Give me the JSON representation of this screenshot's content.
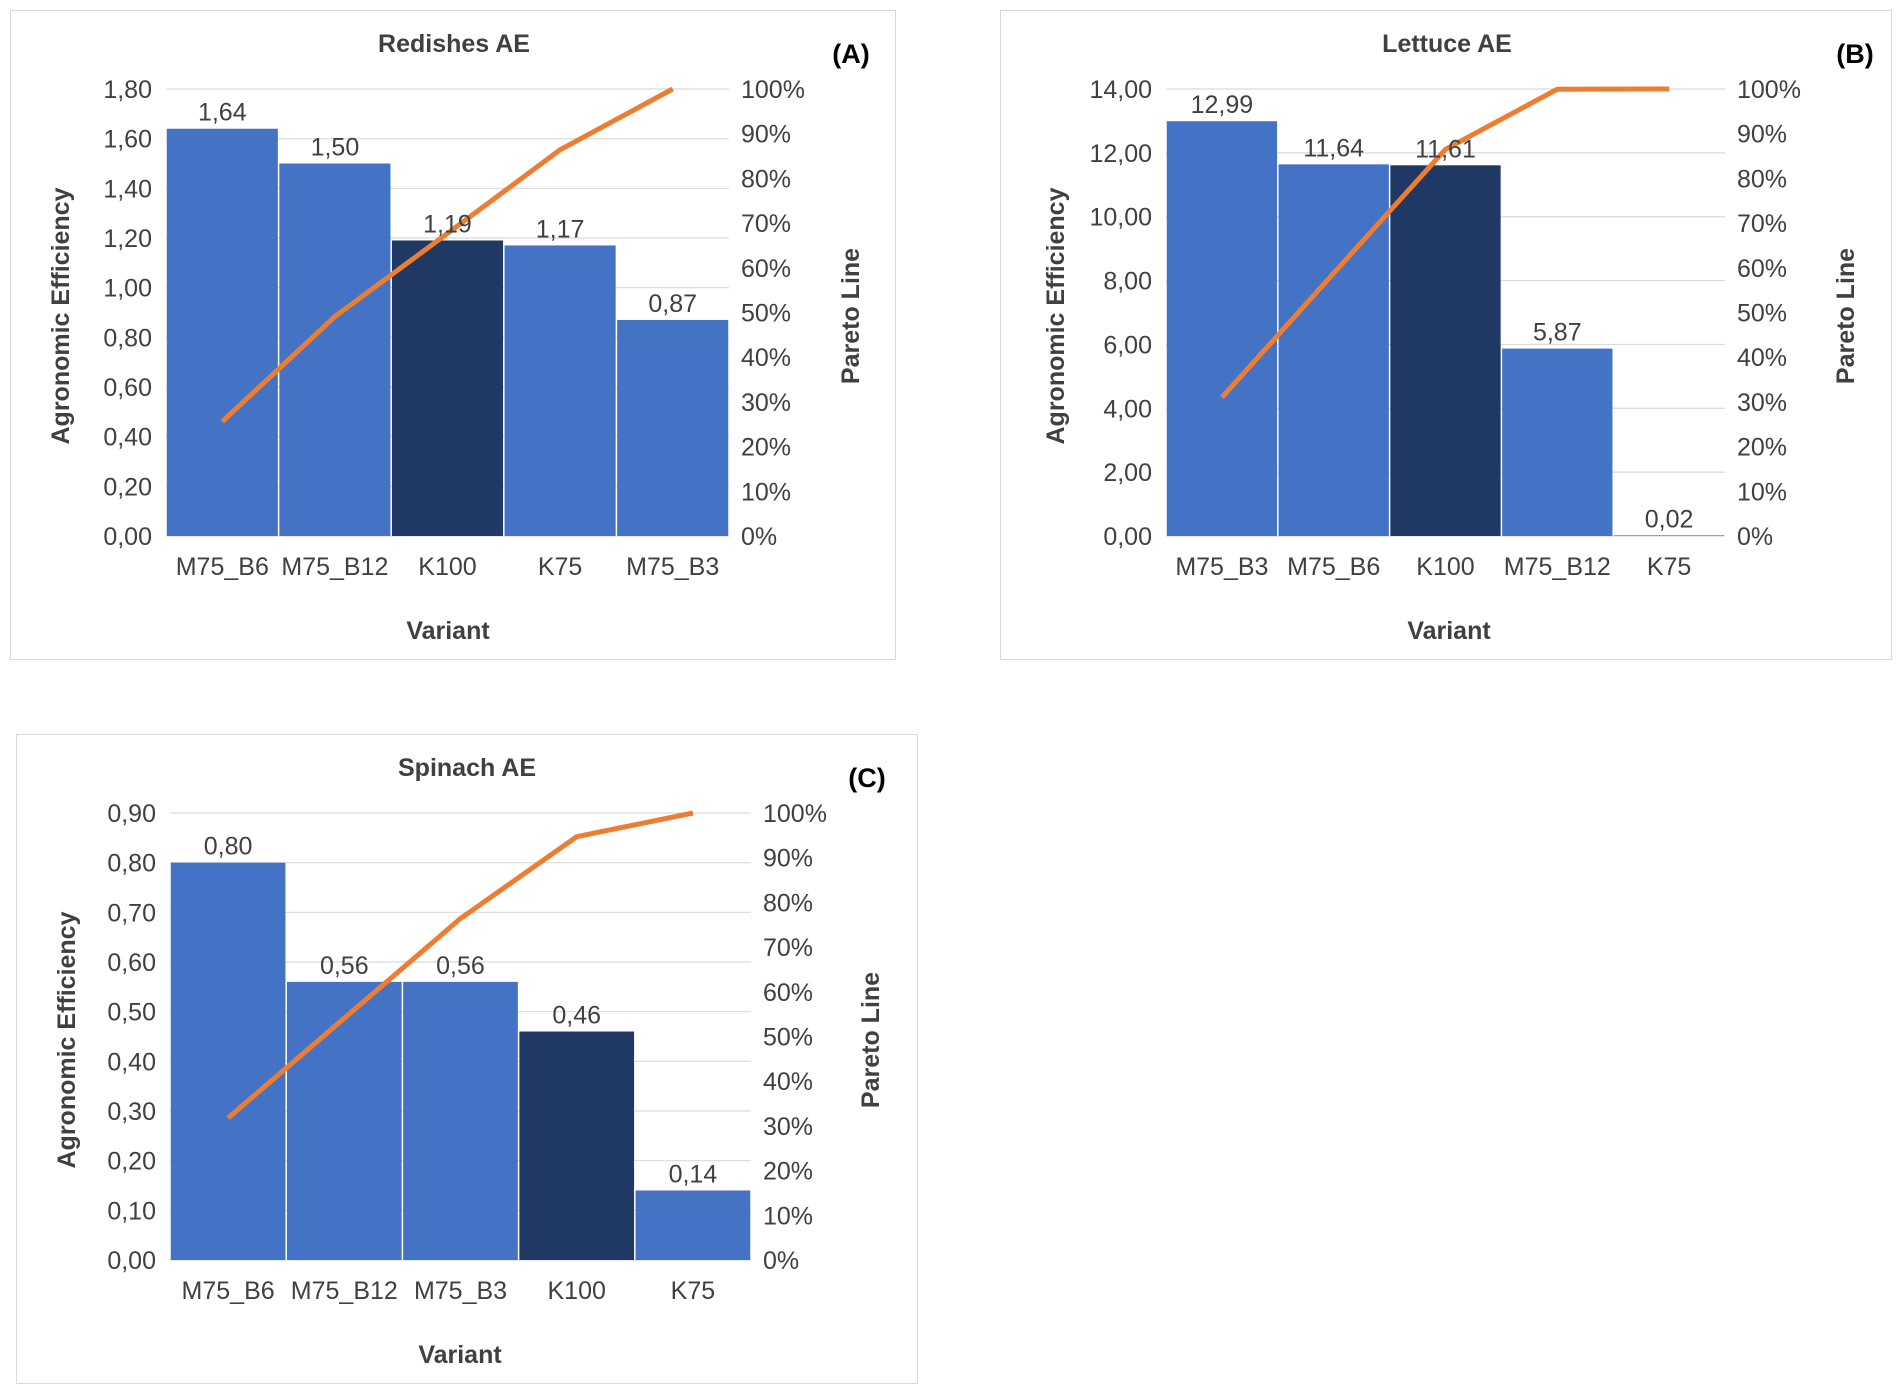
{
  "chart_data": [
    {
      "type": "bar",
      "panel": "(A)",
      "title": "Redishes AE",
      "xlabel": "Variant",
      "ylabel": "Agronomic Efficiency",
      "y2label": "Pareto Line",
      "categories": [
        "M75_B6",
        "M75_B12",
        "K100",
        "K75",
        "M75_B3"
      ],
      "values": [
        1.64,
        1.5,
        1.19,
        1.17,
        0.87
      ],
      "value_labels": [
        "1,64",
        "1,50",
        "1,19",
        "1,17",
        "0,87"
      ],
      "highlight_index": 2,
      "pareto_percent": [
        25.6,
        49.1,
        67.7,
        86.4,
        100
      ],
      "ylim": [
        0,
        1.8
      ],
      "yticks": [
        "0,00",
        "0,20",
        "0,40",
        "0,60",
        "0,80",
        "1,00",
        "1,20",
        "1,40",
        "1,60",
        "1,80"
      ],
      "y2ticks": [
        "0%",
        "10%",
        "20%",
        "30%",
        "40%",
        "50%",
        "60%",
        "70%",
        "80%",
        "90%",
        "100%"
      ],
      "grid": true
    },
    {
      "type": "bar",
      "panel": "(B)",
      "title": "Lettuce AE",
      "xlabel": "Variant",
      "ylabel": "Agronomic Efficiency",
      "y2label": "Pareto Line",
      "categories": [
        "M75_B3",
        "M75_B6",
        "K100",
        "M75_B12",
        "K75"
      ],
      "values": [
        12.99,
        11.64,
        11.61,
        5.87,
        0.02
      ],
      "value_labels": [
        "12,99",
        "11,64",
        "11,61",
        "5,87",
        "0,02"
      ],
      "highlight_index": 2,
      "pareto_percent": [
        31.0,
        58.8,
        86.5,
        99.95,
        100
      ],
      "ylim": [
        0,
        14
      ],
      "yticks": [
        "0,00",
        "2,00",
        "4,00",
        "6,00",
        "8,00",
        "10,00",
        "12,00",
        "14,00"
      ],
      "y2ticks": [
        "0%",
        "10%",
        "20%",
        "30%",
        "40%",
        "50%",
        "60%",
        "70%",
        "80%",
        "90%",
        "100%"
      ],
      "grid": true
    },
    {
      "type": "bar",
      "panel": "(C)",
      "title": "Spinach AE",
      "xlabel": "Variant",
      "ylabel": "Agronomic Efficiency",
      "y2label": "Pareto Line",
      "categories": [
        "M75_B6",
        "M75_B12",
        "M75_B3",
        "K100",
        "K75"
      ],
      "values": [
        0.8,
        0.56,
        0.56,
        0.46,
        0.14
      ],
      "value_labels": [
        "0,80",
        "0,56",
        "0,56",
        "0,46",
        "0,14"
      ],
      "highlight_index": 3,
      "pareto_percent": [
        31.8,
        54.1,
        76.4,
        94.7,
        100
      ],
      "ylim": [
        0,
        0.9
      ],
      "yticks": [
        "0,00",
        "0,10",
        "0,20",
        "0,30",
        "0,40",
        "0,50",
        "0,60",
        "0,70",
        "0,80",
        "0,90"
      ],
      "y2ticks": [
        "0%",
        "10%",
        "20%",
        "30%",
        "40%",
        "50%",
        "60%",
        "70%",
        "80%",
        "90%",
        "100%"
      ],
      "grid": true
    }
  ],
  "colors": {
    "bar": "#4472c4",
    "highlight_bar": "#203864",
    "pareto_line": "#ed7d31",
    "grid": "#d9d9d9",
    "text": "#404040"
  }
}
